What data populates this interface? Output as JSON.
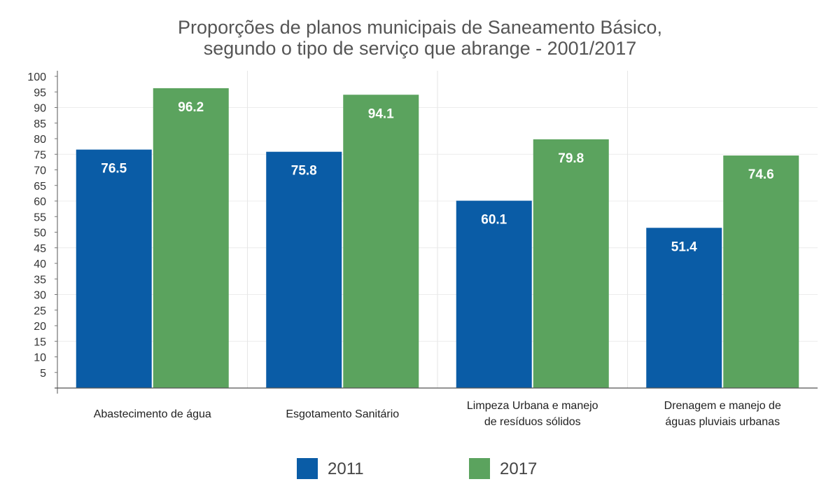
{
  "chart_data": {
    "type": "bar",
    "title_lines": [
      "Proporções de planos municipais de Saneamento Básico,",
      "segundo o tipo de serviço que abrange - 2001/2017"
    ],
    "categories": [
      [
        "Abastecimento de água"
      ],
      [
        "Esgotamento Sanitário"
      ],
      [
        "Limpeza Urbana e manejo",
        "de resíduos sólidos"
      ],
      [
        "Drenagem e manejo de",
        "águas pluviais urbanas"
      ]
    ],
    "series": [
      {
        "name": "2011",
        "color": "#0a5ca6",
        "values": [
          76.5,
          75.8,
          60.1,
          51.4
        ]
      },
      {
        "name": "2017",
        "color": "#5ba35e",
        "values": [
          96.2,
          94.1,
          79.8,
          74.6
        ]
      }
    ],
    "ylim": [
      0,
      100
    ],
    "yticks": [
      5,
      10,
      15,
      20,
      25,
      30,
      35,
      40,
      45,
      50,
      55,
      60,
      65,
      70,
      75,
      80,
      85,
      90,
      95,
      100
    ],
    "grid": true,
    "legend_position": "bottom",
    "data_labels": true
  }
}
